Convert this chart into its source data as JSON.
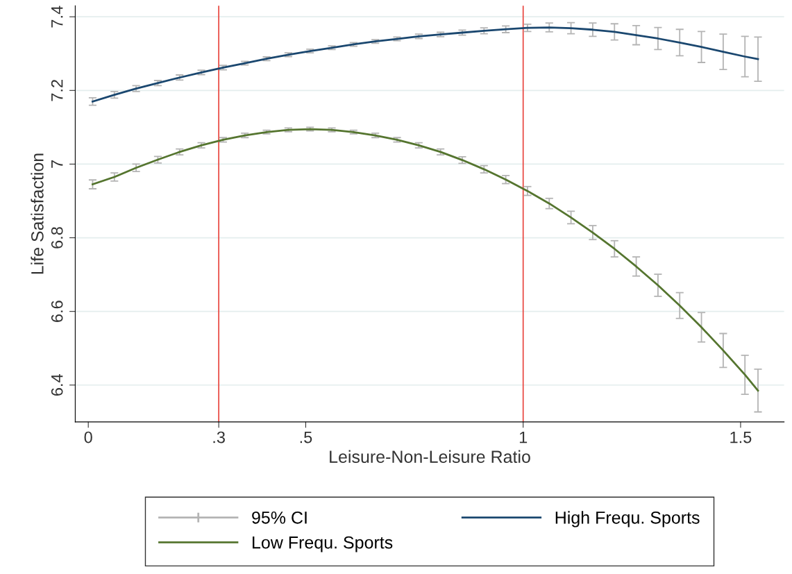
{
  "chart_data": {
    "type": "line",
    "xlabel": "Leisure-Non-Leisure Ratio",
    "ylabel": "Life Satisfaction",
    "xlim": [
      -0.03,
      1.6
    ],
    "ylim": [
      6.3,
      7.43
    ],
    "xticks": [
      0,
      {
        "value": 0.3,
        "label": ".3"
      },
      {
        "value": 0.5,
        "label": ".5"
      },
      1,
      1.5
    ],
    "yticks": [
      6.4,
      6.6,
      6.8,
      {
        "value": 7,
        "label": "7"
      },
      7.2,
      7.4
    ],
    "grid": "y",
    "legend": "bottom",
    "marker": "none",
    "line_style": "solid",
    "x": [
      0.01,
      0.06,
      0.11,
      0.16,
      0.21,
      0.26,
      0.31,
      0.36,
      0.41,
      0.46,
      0.51,
      0.56,
      0.61,
      0.66,
      0.71,
      0.76,
      0.81,
      0.86,
      0.91,
      0.96,
      1.01,
      1.06,
      1.11,
      1.16,
      1.21,
      1.26,
      1.31,
      1.36,
      1.41,
      1.46,
      1.51,
      1.54
    ],
    "ref_lines": [
      {
        "axis": "x",
        "value": 0.3,
        "color": "#e8413a"
      },
      {
        "axis": "x",
        "value": 1,
        "color": "#e8413a"
      }
    ],
    "series": [
      {
        "name": "95% CI",
        "color": "#b4b4b4",
        "values": [
          null,
          null,
          null,
          null,
          null,
          null,
          null,
          null,
          null,
          null,
          null,
          null,
          null,
          null,
          null,
          null,
          null,
          null,
          null,
          null,
          null,
          null,
          null,
          null,
          null,
          null,
          null,
          null,
          null,
          null,
          null,
          null
        ]
      },
      {
        "name": "High Frequ. Sports",
        "color": "#1a476f",
        "values": [
          7.17,
          7.188,
          7.205,
          7.22,
          7.235,
          7.249,
          7.262,
          7.274,
          7.286,
          7.297,
          7.307,
          7.316,
          7.325,
          7.333,
          7.34,
          7.347,
          7.352,
          7.357,
          7.362,
          7.366,
          7.37,
          7.371,
          7.369,
          7.365,
          7.359,
          7.35,
          7.341,
          7.33,
          7.318,
          7.305,
          7.292,
          7.285
        ],
        "errors": [
          0.01,
          0.009,
          0.008,
          0.007,
          0.007,
          0.006,
          0.006,
          0.005,
          0.005,
          0.005,
          0.005,
          0.005,
          0.005,
          0.005,
          0.005,
          0.006,
          0.006,
          0.007,
          0.008,
          0.009,
          0.01,
          0.012,
          0.015,
          0.018,
          0.022,
          0.026,
          0.03,
          0.036,
          0.042,
          0.048,
          0.055,
          0.06
        ]
      },
      {
        "name": "Low Frequ. Sports",
        "color": "#55752f",
        "values": [
          6.945,
          6.965,
          6.99,
          7.012,
          7.033,
          7.051,
          7.066,
          7.078,
          7.087,
          7.093,
          7.095,
          7.093,
          7.087,
          7.078,
          7.066,
          7.051,
          7.033,
          7.011,
          6.986,
          6.958,
          6.927,
          6.893,
          6.855,
          6.814,
          6.77,
          6.722,
          6.671,
          6.616,
          6.557,
          6.494,
          6.428,
          6.385
        ],
        "errors": [
          0.012,
          0.011,
          0.01,
          0.009,
          0.008,
          0.007,
          0.006,
          0.006,
          0.005,
          0.005,
          0.005,
          0.005,
          0.005,
          0.006,
          0.006,
          0.007,
          0.008,
          0.009,
          0.01,
          0.011,
          0.012,
          0.014,
          0.017,
          0.019,
          0.022,
          0.026,
          0.03,
          0.035,
          0.04,
          0.046,
          0.053,
          0.058
        ]
      }
    ]
  }
}
